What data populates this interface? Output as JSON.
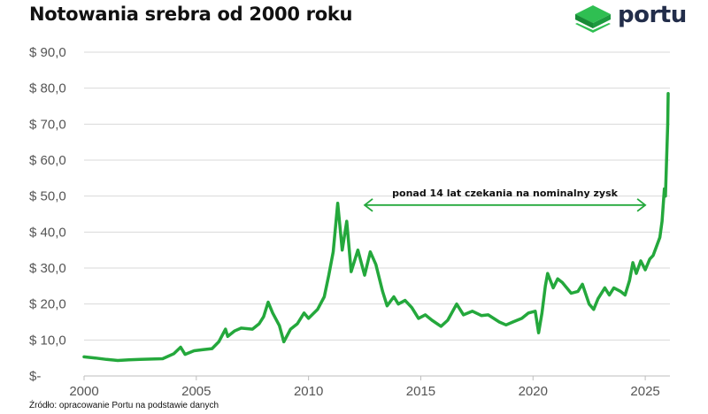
{
  "header": {
    "title": "Notowania srebra od 2000 roku",
    "brand": "portu"
  },
  "footer": {
    "source": "Źródło: opracowanie Portu na podstawie danych"
  },
  "colors": {
    "line": "#24a83c",
    "grid": "#d9d9d9",
    "logo_green": "#23a64a",
    "logo_dark": "#222d4a"
  },
  "icons": {
    "logo": "stacked-green-cube-logo-icon"
  },
  "chart_data": {
    "type": "line",
    "title": "Notowania srebra od 2000 roku",
    "xlabel": "",
    "ylabel": "",
    "xlim": [
      2000,
      2026.1
    ],
    "ylim": [
      0,
      90
    ],
    "y_ticks": [
      {
        "value": 0,
        "label": "$-"
      },
      {
        "value": 10,
        "label": "$ 10,0"
      },
      {
        "value": 20,
        "label": "$ 20,0"
      },
      {
        "value": 30,
        "label": "$ 30,0"
      },
      {
        "value": 40,
        "label": "$ 40,0"
      },
      {
        "value": 50,
        "label": "$ 50,0"
      },
      {
        "value": 60,
        "label": "$ 60,0"
      },
      {
        "value": 70,
        "label": "$ 70,0"
      },
      {
        "value": 80,
        "label": "$ 80,0"
      },
      {
        "value": 90,
        "label": "$ 90,0"
      }
    ],
    "x_ticks": [
      {
        "value": 2000,
        "label": "2000"
      },
      {
        "value": 2005,
        "label": "2005"
      },
      {
        "value": 2010,
        "label": "2010"
      },
      {
        "value": 2015,
        "label": "2015"
      },
      {
        "value": 2020,
        "label": "2020"
      },
      {
        "value": 2025,
        "label": "2025"
      }
    ],
    "grid": "horizontal",
    "annotation": {
      "text": "ponad 14 lat czekania na nominalny zysk",
      "x_start": 2012.5,
      "x_end": 2025.0,
      "y": 47.5
    },
    "series": [
      {
        "points": [
          [
            2000.0,
            5.3
          ],
          [
            2000.5,
            5.0
          ],
          [
            2001.0,
            4.6
          ],
          [
            2001.5,
            4.3
          ],
          [
            2002.0,
            4.5
          ],
          [
            2002.5,
            4.6
          ],
          [
            2003.0,
            4.7
          ],
          [
            2003.5,
            4.8
          ],
          [
            2004.0,
            6.2
          ],
          [
            2004.3,
            8.0
          ],
          [
            2004.5,
            6.0
          ],
          [
            2004.9,
            7.0
          ],
          [
            2005.3,
            7.3
          ],
          [
            2005.7,
            7.6
          ],
          [
            2006.0,
            9.5
          ],
          [
            2006.3,
            13.0
          ],
          [
            2006.4,
            11.0
          ],
          [
            2006.7,
            12.5
          ],
          [
            2007.0,
            13.3
          ],
          [
            2007.5,
            13.0
          ],
          [
            2007.8,
            14.5
          ],
          [
            2008.0,
            16.5
          ],
          [
            2008.2,
            20.5
          ],
          [
            2008.4,
            17.5
          ],
          [
            2008.7,
            14.0
          ],
          [
            2008.9,
            9.5
          ],
          [
            2009.2,
            13.0
          ],
          [
            2009.5,
            14.5
          ],
          [
            2009.8,
            17.5
          ],
          [
            2010.0,
            16.0
          ],
          [
            2010.4,
            18.5
          ],
          [
            2010.7,
            22.0
          ],
          [
            2010.9,
            28.0
          ],
          [
            2011.1,
            34.5
          ],
          [
            2011.3,
            48.0
          ],
          [
            2011.5,
            35.0
          ],
          [
            2011.7,
            43.0
          ],
          [
            2011.9,
            29.0
          ],
          [
            2012.2,
            35.0
          ],
          [
            2012.5,
            28.0
          ],
          [
            2012.75,
            34.5
          ],
          [
            2013.0,
            31.0
          ],
          [
            2013.3,
            23.5
          ],
          [
            2013.5,
            19.5
          ],
          [
            2013.8,
            22.0
          ],
          [
            2014.0,
            20.0
          ],
          [
            2014.3,
            21.0
          ],
          [
            2014.6,
            19.0
          ],
          [
            2014.9,
            16.0
          ],
          [
            2015.2,
            17.0
          ],
          [
            2015.5,
            15.5
          ],
          [
            2015.9,
            13.8
          ],
          [
            2016.2,
            15.5
          ],
          [
            2016.6,
            20.0
          ],
          [
            2016.9,
            17.0
          ],
          [
            2017.3,
            18.0
          ],
          [
            2017.7,
            16.8
          ],
          [
            2018.0,
            17.0
          ],
          [
            2018.5,
            15.0
          ],
          [
            2018.8,
            14.2
          ],
          [
            2019.1,
            15.0
          ],
          [
            2019.5,
            16.0
          ],
          [
            2019.8,
            17.5
          ],
          [
            2020.1,
            18.0
          ],
          [
            2020.25,
            12.0
          ],
          [
            2020.4,
            17.5
          ],
          [
            2020.55,
            25.0
          ],
          [
            2020.65,
            28.5
          ],
          [
            2020.9,
            24.5
          ],
          [
            2021.1,
            27.0
          ],
          [
            2021.3,
            26.0
          ],
          [
            2021.7,
            23.0
          ],
          [
            2022.0,
            23.5
          ],
          [
            2022.2,
            25.5
          ],
          [
            2022.5,
            20.0
          ],
          [
            2022.7,
            18.5
          ],
          [
            2022.9,
            21.5
          ],
          [
            2023.2,
            24.5
          ],
          [
            2023.4,
            22.5
          ],
          [
            2023.6,
            24.5
          ],
          [
            2023.9,
            23.5
          ],
          [
            2024.1,
            22.5
          ],
          [
            2024.3,
            26.5
          ],
          [
            2024.45,
            31.5
          ],
          [
            2024.6,
            28.5
          ],
          [
            2024.8,
            32.0
          ],
          [
            2025.0,
            29.5
          ],
          [
            2025.2,
            32.5
          ],
          [
            2025.35,
            33.5
          ],
          [
            2025.5,
            36.0
          ],
          [
            2025.65,
            38.5
          ],
          [
            2025.75,
            43.0
          ],
          [
            2025.85,
            52.0
          ],
          [
            2025.9,
            50.0
          ],
          [
            2025.95,
            60.0
          ],
          [
            2026.0,
            70.0
          ],
          [
            2026.02,
            78.5
          ]
        ]
      }
    ]
  }
}
